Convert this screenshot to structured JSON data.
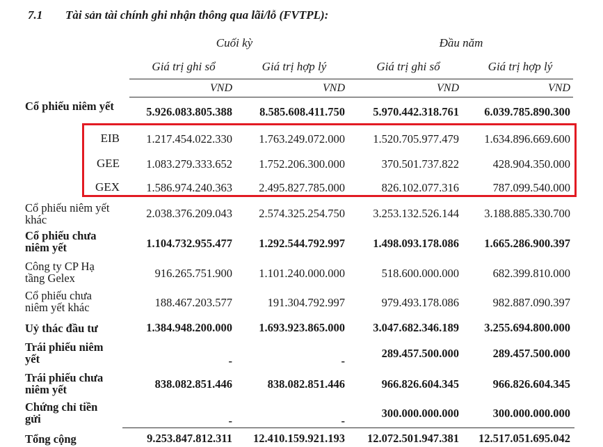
{
  "heading": {
    "number": "7.1",
    "title": "Tài sản tài chính ghi nhận thông qua lãi/lỗ (FVTPL):"
  },
  "groups": {
    "end": "Cuối kỳ",
    "start": "Đầu năm"
  },
  "subheaders": {
    "c1": "Giá trị ghi sổ",
    "c2": "Giá trị hợp lý",
    "c3": "Giá trị ghi sổ",
    "c4": "Giá trị hợp lý"
  },
  "unit": "VND",
  "rows": [
    {
      "label": "Cổ phiếu niêm yết",
      "c1": "5.926.083.805.388",
      "c2": "8.585.608.411.750",
      "c3": "5.970.442.318.761",
      "c4": "6.039.785.890.300"
    },
    {
      "label": "EIB",
      "c1": "1.217.454.022.330",
      "c2": "1.763.249.072.000",
      "c3": "1.520.705.977.479",
      "c4": "1.634.896.669.600"
    },
    {
      "label": "GEE",
      "c1": "1.083.279.333.652",
      "c2": "1.752.206.300.000",
      "c3": "370.501.737.822",
      "c4": "428.904.350.000"
    },
    {
      "label": "GEX",
      "c1": "1.586.974.240.363",
      "c2": "2.495.827.785.000",
      "c3": "826.102.077.316",
      "c4": "787.099.540.000"
    },
    {
      "label": "Cổ phiếu niêm yết khác",
      "c1": "2.038.376.209.043",
      "c2": "2.574.325.254.750",
      "c3": "3.253.132.526.144",
      "c4": "3.188.885.330.700"
    },
    {
      "label": "Cổ phiếu chưa niêm yết",
      "c1": "1.104.732.955.477",
      "c2": "1.292.544.792.997",
      "c3": "1.498.093.178.086",
      "c4": "1.665.286.900.397"
    },
    {
      "label": "Công ty CP Hạ tầng Gelex",
      "c1": "916.265.751.900",
      "c2": "1.101.240.000.000",
      "c3": "518.600.000.000",
      "c4": "682.399.810.000"
    },
    {
      "label": "Cổ phiếu chưa niêm yết khác",
      "c1": "188.467.203.577",
      "c2": "191.304.792.997",
      "c3": "979.493.178.086",
      "c4": "982.887.090.397"
    },
    {
      "label": "Uỷ thác đầu tư",
      "c1": "1.384.948.200.000",
      "c2": "1.693.923.865.000",
      "c3": "3.047.682.346.189",
      "c4": "3.255.694.800.000"
    },
    {
      "label": "Trái phiếu niêm yết",
      "c1": "-",
      "c2": "-",
      "c3": "289.457.500.000",
      "c4": "289.457.500.000"
    },
    {
      "label": "Trái phiếu chưa niêm yết",
      "c1": "838.082.851.446",
      "c2": "838.082.851.446",
      "c3": "966.826.604.345",
      "c4": "966.826.604.345"
    },
    {
      "label": "Chứng chỉ tiền gửi",
      "c1": "-",
      "c2": "-",
      "c3": "300.000.000.000",
      "c4": "300.000.000.000"
    },
    {
      "label": "Tổng cộng",
      "c1": "9.253.847.812.311",
      "c2": "12.410.159.921.193",
      "c3": "12.072.501.947.381",
      "c4": "12.517.051.695.042"
    }
  ]
}
